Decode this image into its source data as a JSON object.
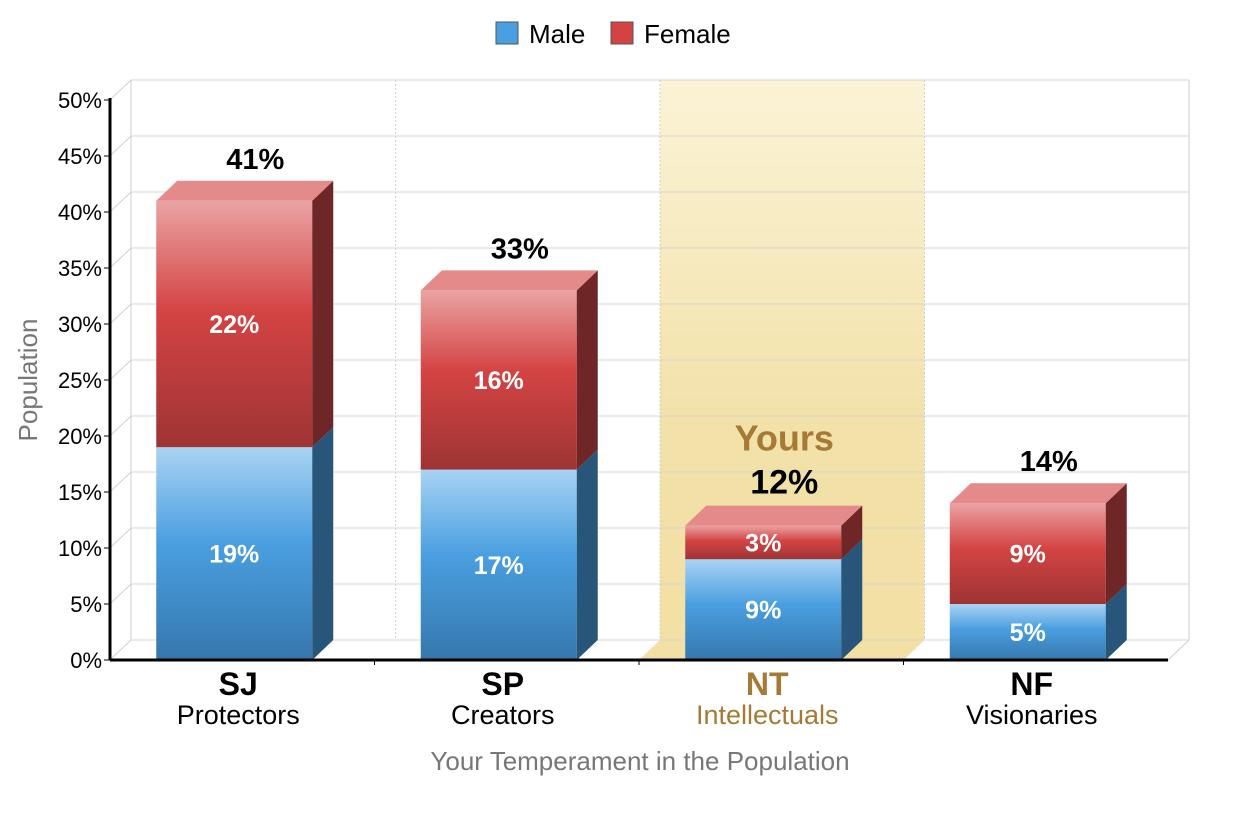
{
  "chart_data": {
    "type": "bar",
    "stacked": true,
    "categories": [
      "SJ",
      "SP",
      "NT",
      "NF"
    ],
    "category_names": [
      "Protectors",
      "Creators",
      "Intellectuals",
      "Visionaries"
    ],
    "series": [
      {
        "name": "Male",
        "values": [
          19,
          17,
          9,
          5
        ],
        "labels": [
          "19%",
          "17%",
          "9%",
          "5%"
        ],
        "color": "#4a9fe0",
        "side_color": "#27567a"
      },
      {
        "name": "Female",
        "values": [
          22,
          16,
          3,
          9
        ],
        "labels": [
          "22%",
          "16%",
          "3%",
          "9%"
        ],
        "color": "#d44343",
        "side_color": "#6e2626"
      }
    ],
    "totals": [
      41,
      33,
      12,
      14
    ],
    "total_labels": [
      "41%",
      "33%",
      "12%",
      "14%"
    ],
    "highlight_index": 2,
    "highlight_label": "Yours",
    "highlight_color": "#f2e1a8",
    "highlight_text_color": "#a57a35",
    "ylim": [
      0,
      50
    ],
    "yticks": [
      0,
      5,
      10,
      15,
      20,
      25,
      30,
      35,
      40,
      45,
      50
    ],
    "ytick_labels": [
      "0%",
      "5%",
      "10%",
      "15%",
      "20%",
      "25%",
      "30%",
      "35%",
      "40%",
      "45%",
      "50%"
    ],
    "xlabel": "Your Temperament in the Population",
    "ylabel": "Population",
    "legend_position": "top-center",
    "grid": true
  }
}
